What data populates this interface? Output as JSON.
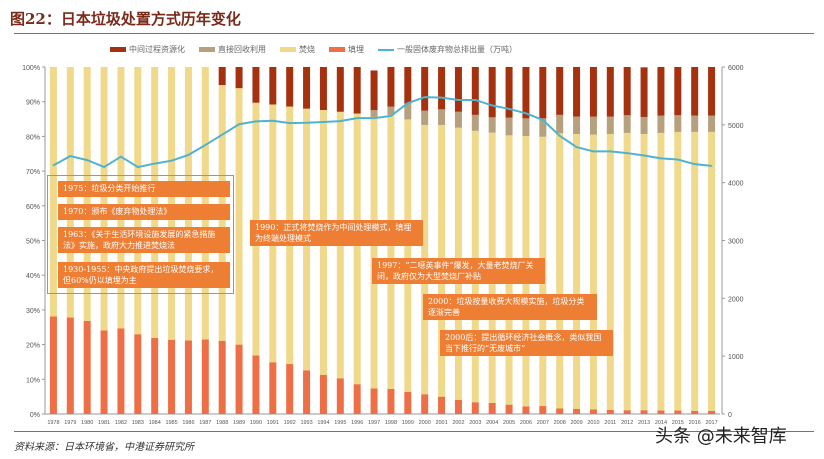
{
  "title": "图22：日本垃圾处置方式历年变化",
  "source": "资料来源：日本环境省，中港证券研究所",
  "watermark": "头条 @未来智库",
  "annotations": [
    "1975：垃圾分类开始推行",
    "1970：颁布《废弃物处理法》",
    "1963：《关于生活环境设施发展的紧急措施法》实施，政府大力推进焚烧法",
    "1930-1955：中央政府提出垃圾焚烧要求，但60%仍以填埋为主",
    "1990：正式将焚烧作为中间处理模式，填埋为终端处理模式",
    "1997：“二噁英事件”爆发，大量老焚烧厂关闭，政府仅为大型焚烧厂补贴",
    "2000：垃圾按量收费大规模实施，垃圾分类逐渐完善",
    "2000后：提出循环经济社会概念，类似我国当下推行的“无废城市”"
  ],
  "chart_data": {
    "type": "bar",
    "stacked": true,
    "categories": [
      "1978",
      "1979",
      "1980",
      "1981",
      "1982",
      "1983",
      "1984",
      "1985",
      "1986",
      "1987",
      "1988",
      "1989",
      "1990",
      "1991",
      "1992",
      "1993",
      "1994",
      "1995",
      "1996",
      "1997",
      "1998",
      "1999",
      "2000",
      "2001",
      "2002",
      "2003",
      "2004",
      "2005",
      "2006",
      "2007",
      "2008",
      "2009",
      "2010",
      "2011",
      "2012",
      "2013",
      "2014",
      "2015",
      "2016",
      "2017"
    ],
    "ylim": [
      0,
      100
    ],
    "yticks": [
      "0%",
      "10%",
      "20%",
      "30%",
      "40%",
      "50%",
      "60%",
      "70%",
      "80%",
      "90%",
      "100%"
    ],
    "y2lim": [
      0,
      6000
    ],
    "y2ticks": [
      "0",
      "1000",
      "2000",
      "3000",
      "4000",
      "5000",
      "6000"
    ],
    "legend_position": "top",
    "series": [
      {
        "name": "填埋",
        "color": "#ee6f45",
        "values": [
          28.1,
          27.8,
          26.8,
          24.1,
          24.7,
          23,
          21.9,
          21.4,
          21.2,
          21.5,
          21.1,
          20,
          16.9,
          14.9,
          14.4,
          12.6,
          11.3,
          10.3,
          8.6,
          7.4,
          7.2,
          6.4,
          5.7,
          5.0,
          4.1,
          3.4,
          3.2,
          2.7,
          2.2,
          2.3,
          1.6,
          1.5,
          1.3,
          1.2,
          1.1,
          1.1,
          1.0,
          1.0,
          0.9,
          0.9
        ]
      },
      {
        "name": "焚烧",
        "color": "#f0d98b",
        "values": [
          71.9,
          72.2,
          73.2,
          75.9,
          75.3,
          77,
          78.1,
          78.6,
          78.8,
          78.5,
          73.7,
          73.9,
          72.8,
          74.3,
          74.2,
          75.4,
          76.3,
          76.8,
          78,
          78.2,
          79,
          78.5,
          77.6,
          78.3,
          78.4,
          78.2,
          77.9,
          77.6,
          77.9,
          77.6,
          79.3,
          79.2,
          79.2,
          79.5,
          79.9,
          79.6,
          80.0,
          80.3,
          80.4,
          80.4
        ]
      },
      {
        "name": "直接回收利用",
        "color": "#b7a07e",
        "values": [
          0,
          0,
          0,
          0,
          0,
          0,
          0,
          0,
          0,
          0,
          0,
          0,
          0,
          0,
          0,
          0,
          0,
          0,
          0,
          2.0,
          2.4,
          4.6,
          4.1,
          4.5,
          4.6,
          4.6,
          4.4,
          5.1,
          5.1,
          5.3,
          5.3,
          5.0,
          5.2,
          5.0,
          5.1,
          4.9,
          5.0,
          4.8,
          4.7,
          4.7
        ]
      },
      {
        "name": "中间过程资源化",
        "color": "#a5310f",
        "values": [
          0,
          0,
          0,
          0,
          0,
          0,
          0,
          0,
          0,
          0,
          5.2,
          6.1,
          10.3,
          10.8,
          11.4,
          12.0,
          12.4,
          12.9,
          13.4,
          11.4,
          11.4,
          10.5,
          12.6,
          12.2,
          12.9,
          13.8,
          14.5,
          14.6,
          14.8,
          14.8,
          13.8,
          14.3,
          14.3,
          14.3,
          13.9,
          14.3,
          14.0,
          13.9,
          14.0,
          14.0
        ]
      }
    ],
    "line": {
      "name": "一般固体废弃物总排出量（万吨）",
      "axis": "right",
      "color": "#4fb3cf",
      "values": [
        4300,
        4460,
        4390,
        4270,
        4450,
        4270,
        4330,
        4380,
        4480,
        4650,
        4830,
        5010,
        5060,
        5070,
        5030,
        5035,
        5050,
        5065,
        5115,
        5115,
        5155,
        5375,
        5480,
        5470,
        5430,
        5430,
        5335,
        5275,
        5200,
        5085,
        4810,
        4615,
        4540,
        4540,
        4510,
        4470,
        4420,
        4400,
        4320,
        4290
      ]
    }
  }
}
